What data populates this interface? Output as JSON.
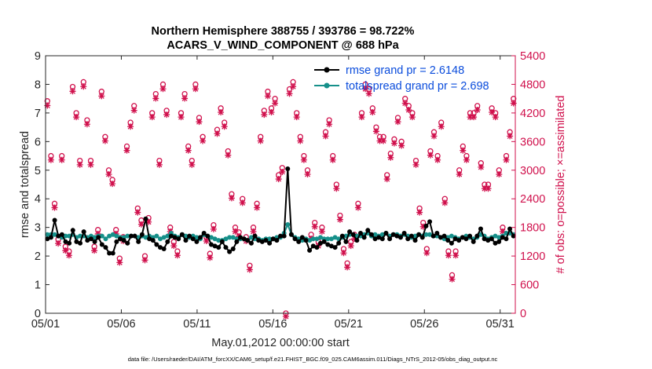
{
  "chart_data": {
    "type": "line",
    "title": "Northern Hemisphere 388755 / 393786 = 98.722%",
    "subtitle": "ACARS_V_WIND_COMPONENT @ 688 hPa",
    "xlabel": "May.01,2012 00:00:00 start",
    "ylabel": "rmse and totalspread",
    "y2label": "# of obs: o=possible; ×=assimilated",
    "footnote": "data file: /Users/raeder/DAI/ATM_forcXX/CAM6_setup/f.e21.FHIST_BGC.f09_025.CAM6assim.011/Diags_NTrS_2012-05/obs_diag_output.nc",
    "x_ticks": [
      1,
      6,
      11,
      16,
      21,
      26,
      31
    ],
    "x_ticklabels": [
      "05/01",
      "05/06",
      "05/11",
      "05/16",
      "05/21",
      "05/26",
      "05/31"
    ],
    "xlim": [
      1,
      32
    ],
    "ylim": [
      0,
      9
    ],
    "y_ticks": [
      0,
      1,
      2,
      3,
      4,
      5,
      6,
      7,
      8,
      9
    ],
    "y2lim": [
      0,
      5400
    ],
    "y2_ticks": [
      0,
      600,
      1200,
      1800,
      2400,
      3000,
      3600,
      4200,
      4800,
      5400
    ],
    "series": [
      {
        "name": "rmse grand pr = 2.6148",
        "axis": "left",
        "color": "#000000",
        "values": [
          2.6,
          2.65,
          3.25,
          2.7,
          2.75,
          2.5,
          2.45,
          2.9,
          2.5,
          2.45,
          2.85,
          2.55,
          2.6,
          2.5,
          2.65,
          2.4,
          2.3,
          2.1,
          2.1,
          2.5,
          2.6,
          2.55,
          2.45,
          2.7,
          2.7,
          2.5,
          2.75,
          3.3,
          2.6,
          2.55,
          2.4,
          2.3,
          2.25,
          2.5,
          2.7,
          2.65,
          2.6,
          2.75,
          2.55,
          2.7,
          2.6,
          2.5,
          2.65,
          2.8,
          2.7,
          2.4,
          2.35,
          2.3,
          2.5,
          2.3,
          2.15,
          2.25,
          2.5,
          2.65,
          2.6,
          2.55,
          2.45,
          2.7,
          2.55,
          2.5,
          2.55,
          2.45,
          2.6,
          2.55,
          2.7,
          2.7,
          5.05,
          2.75,
          2.6,
          2.5,
          2.65,
          2.55,
          2.2,
          2.35,
          2.3,
          2.45,
          2.5,
          2.4,
          2.35,
          2.3,
          2.45,
          2.7,
          2.5,
          2.85,
          2.75,
          2.55,
          2.8,
          2.65,
          2.9,
          2.75,
          2.6,
          2.65,
          2.6,
          2.8,
          2.6,
          2.75,
          2.7,
          2.65,
          2.8,
          2.6,
          2.7,
          2.55,
          2.75,
          2.65,
          3.05,
          3.2,
          2.7,
          2.8,
          2.65,
          2.7,
          2.55,
          2.45,
          2.6,
          2.55,
          2.65,
          2.6,
          2.7,
          2.5,
          2.7,
          2.95,
          2.6,
          2.55,
          2.6,
          2.45,
          2.5,
          2.65,
          2.6,
          2.95,
          2.7
        ]
      },
      {
        "name": "totalspread grand pr = 2.698",
        "axis": "left",
        "color": "#16908a",
        "values": [
          2.75,
          2.75,
          2.75,
          2.7,
          2.65,
          2.7,
          2.7,
          2.75,
          2.65,
          2.7,
          2.7,
          2.65,
          2.7,
          2.65,
          2.7,
          2.7,
          2.6,
          2.7,
          2.75,
          2.7,
          2.65,
          2.65,
          2.7,
          2.7,
          2.7,
          2.65,
          2.7,
          2.65,
          2.7,
          2.65,
          2.7,
          2.6,
          2.65,
          2.7,
          2.8,
          2.7,
          2.65,
          2.75,
          2.7,
          2.65,
          2.7,
          2.65,
          2.6,
          2.75,
          2.7,
          2.65,
          2.6,
          2.55,
          2.55,
          2.6,
          2.65,
          2.65,
          2.6,
          2.6,
          2.6,
          2.55,
          2.65,
          2.6,
          2.6,
          2.55,
          2.6,
          2.6,
          2.6,
          2.65,
          2.65,
          2.8,
          3.1,
          2.75,
          2.65,
          2.6,
          2.55,
          2.6,
          2.55,
          2.6,
          2.6,
          2.65,
          2.6,
          2.6,
          2.6,
          2.65,
          2.6,
          2.65,
          2.7,
          2.75,
          2.75,
          2.7,
          2.7,
          2.75,
          2.8,
          2.7,
          2.75,
          2.7,
          2.75,
          2.8,
          2.7,
          2.75,
          2.75,
          2.7,
          2.75,
          2.7,
          2.65,
          2.7,
          2.75,
          2.7,
          2.75,
          2.75,
          2.7,
          2.7,
          2.65,
          2.6,
          2.65,
          2.7,
          2.65,
          2.6,
          2.65,
          2.7,
          2.65,
          2.6,
          2.65,
          2.75,
          2.7,
          2.6,
          2.65,
          2.7,
          2.65,
          2.7,
          2.8,
          2.8,
          2.75
        ]
      },
      {
        "name": "obs possible (o)",
        "axis": "right",
        "color": "#d0104c",
        "values": [
          4450,
          3300,
          2300,
          1550,
          3300,
          1400,
          1300,
          4750,
          4200,
          3200,
          4850,
          4050,
          3200,
          1400,
          1750,
          4650,
          3700,
          3000,
          2800,
          1750,
          1150,
          1600,
          3500,
          4000,
          4350,
          2200,
          1950,
          1200,
          2000,
          4200,
          4600,
          3200,
          4800,
          4250,
          1800,
          1500,
          1300,
          4200,
          4600,
          3500,
          3200,
          4800,
          4100,
          3700,
          1600,
          1250,
          1850,
          3850,
          4300,
          4000,
          3400,
          2500,
          1800,
          1700,
          2400,
          1600,
          1000,
          1800,
          2300,
          3700,
          4250,
          4650,
          4300,
          4500,
          2900,
          3050,
          0,
          4700,
          4850,
          4200,
          3700,
          3300,
          3000,
          1650,
          1900,
          1500,
          1800,
          3800,
          4050,
          3300,
          2700,
          2050,
          1350,
          1050,
          1500,
          1650,
          2300,
          4200,
          4800,
          4700,
          4300,
          3900,
          3700,
          3700,
          2900,
          3350,
          3650,
          4100,
          3600,
          4500,
          4350,
          4200,
          3200,
          2200,
          1900,
          1350,
          3400,
          3800,
          3300,
          4000,
          2400,
          1300,
          800,
          1300,
          3000,
          3500,
          3300,
          4200,
          4200,
          4350,
          3150,
          2700,
          2700,
          4300,
          4200,
          3000,
          1800,
          3300,
          3800,
          4500
        ]
      },
      {
        "name": "obs assimilated (×)",
        "axis": "right",
        "color": "#d0104c",
        "values": [
          4420,
          3280,
          2280,
          1530,
          3280,
          1380,
          1280,
          4720,
          4180,
          3180,
          4820,
          4030,
          3180,
          1380,
          1730,
          4620,
          3680,
          2980,
          2780,
          1730,
          1130,
          1580,
          3480,
          3980,
          4320,
          2180,
          1930,
          1180,
          1980,
          4180,
          4570,
          3180,
          4770,
          4230,
          1780,
          1480,
          1280,
          4180,
          4570,
          3480,
          3180,
          4770,
          4080,
          3680,
          1580,
          1230,
          1830,
          3830,
          4280,
          3980,
          3380,
          2480,
          1780,
          1680,
          2380,
          1580,
          980,
          1780,
          2280,
          3680,
          4230,
          4620,
          4280,
          4470,
          2880,
          3030,
          0,
          4670,
          4820,
          4180,
          3680,
          3280,
          2980,
          1630,
          1880,
          1480,
          1780,
          3780,
          4030,
          3280,
          2680,
          2030,
          1330,
          1030,
          1480,
          1630,
          2280,
          4180,
          4770,
          4670,
          4280,
          3880,
          3680,
          3680,
          2880,
          3330,
          3630,
          4080,
          3580,
          4470,
          4330,
          4180,
          3180,
          2180,
          1880,
          1330,
          3380,
          3780,
          3280,
          3980,
          2380,
          1280,
          780,
          1280,
          2980,
          3480,
          3280,
          4180,
          4180,
          4330,
          3130,
          2680,
          2680,
          4280,
          4180,
          2980,
          1780,
          3280,
          3780,
          4470
        ]
      }
    ]
  }
}
